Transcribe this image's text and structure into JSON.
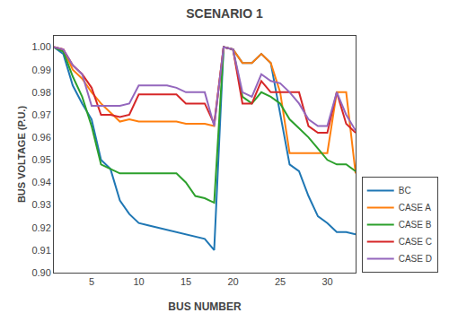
{
  "chart_data": {
    "type": "line",
    "title": "SCENARIO 1",
    "xlabel": "BUS NUMBER",
    "ylabel": "BUS VOLTAGE (P.U.)",
    "x": [
      1,
      2,
      3,
      4,
      5,
      6,
      7,
      8,
      9,
      10,
      11,
      12,
      13,
      14,
      15,
      16,
      17,
      18,
      19,
      20,
      21,
      22,
      23,
      24,
      25,
      26,
      27,
      28,
      29,
      30,
      31,
      32,
      33
    ],
    "series": [
      {
        "name": "BC",
        "values": [
          1.0,
          0.997,
          0.983,
          0.975,
          0.968,
          0.95,
          0.946,
          0.932,
          0.926,
          0.922,
          0.921,
          0.92,
          0.919,
          0.918,
          0.917,
          0.916,
          0.915,
          0.91,
          1.0,
          0.999,
          0.993,
          0.993,
          0.997,
          0.993,
          0.97,
          0.948,
          0.945,
          0.934,
          0.925,
          0.922,
          0.918,
          0.918,
          0.917
        ]
      },
      {
        "name": "CASE A",
        "values": [
          1.0,
          0.999,
          0.99,
          0.986,
          0.98,
          0.975,
          0.971,
          0.967,
          0.968,
          0.967,
          0.967,
          0.967,
          0.967,
          0.967,
          0.966,
          0.966,
          0.966,
          0.965,
          1.0,
          0.999,
          0.993,
          0.993,
          0.997,
          0.993,
          0.98,
          0.953,
          0.953,
          0.953,
          0.953,
          0.953,
          0.98,
          0.98,
          0.944
        ]
      },
      {
        "name": "CASE B",
        "values": [
          1.0,
          0.998,
          0.987,
          0.978,
          0.965,
          0.948,
          0.946,
          0.944,
          0.944,
          0.944,
          0.944,
          0.944,
          0.944,
          0.944,
          0.94,
          0.934,
          0.933,
          0.931,
          1.0,
          0.999,
          0.978,
          0.975,
          0.98,
          0.978,
          0.975,
          0.968,
          0.964,
          0.96,
          0.955,
          0.95,
          0.948,
          0.948,
          0.945
        ]
      },
      {
        "name": "CASE C",
        "values": [
          1.0,
          0.999,
          0.992,
          0.988,
          0.982,
          0.97,
          0.97,
          0.969,
          0.97,
          0.979,
          0.979,
          0.979,
          0.979,
          0.979,
          0.975,
          0.975,
          0.975,
          0.966,
          1.0,
          0.999,
          0.975,
          0.975,
          0.985,
          0.98,
          0.98,
          0.98,
          0.98,
          0.965,
          0.962,
          0.962,
          0.98,
          0.966,
          0.962
        ]
      },
      {
        "name": "CASE D",
        "values": [
          1.0,
          0.999,
          0.992,
          0.988,
          0.974,
          0.974,
          0.974,
          0.974,
          0.975,
          0.983,
          0.983,
          0.983,
          0.983,
          0.982,
          0.98,
          0.98,
          0.98,
          0.965,
          1.0,
          0.999,
          0.98,
          0.978,
          0.988,
          0.985,
          0.984,
          0.98,
          0.975,
          0.968,
          0.965,
          0.965,
          0.98,
          0.97,
          0.963
        ]
      }
    ],
    "xlim": [
      1,
      33
    ],
    "xticks": [
      5,
      10,
      15,
      20,
      25,
      30
    ],
    "ylim": [
      0.9,
      1.005
    ],
    "yticks": [
      {
        "value": 0.9,
        "label": "0.90"
      },
      0.91,
      0.92,
      0.93,
      0.94,
      0.95,
      0.96,
      0.97,
      0.98,
      0.99,
      {
        "value": 1.0,
        "label": "1.00"
      }
    ],
    "grid": false,
    "legend": "lower right"
  }
}
